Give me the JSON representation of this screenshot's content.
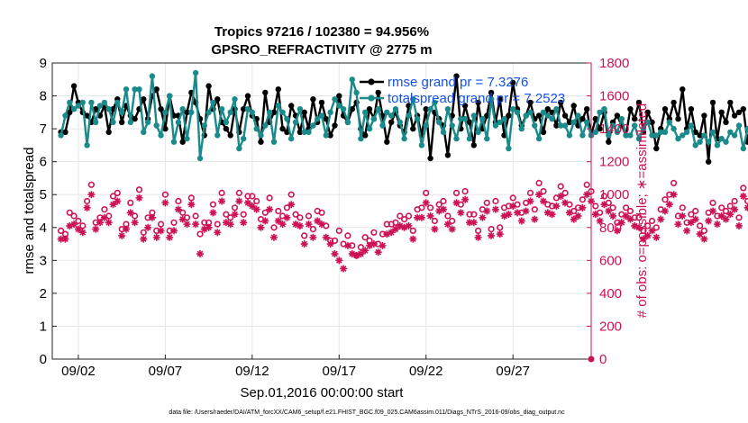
{
  "chart_data": {
    "type": "line",
    "title": "Tropics 97216 / 102380 = 94.956%",
    "subtitle": "GPSRO_REFRACTIVITY @ 2775 m",
    "xlabel": "Sep.01,2016 00:00:00 start",
    "ylabel_left": "rmse and totalspread",
    "ylabel_right": "# of obs: o=possible; ∗=assimilated",
    "footer": "data file: /Users/raeder/DAI/ATM_forcXX/CAM6_setup/f.e21.FHIST_BGC.f09_025.CAM6assim.011/Diags_NTrS_2016-09/obs_diag_output.nc",
    "xlim": [
      0.5,
      31.5
    ],
    "ylim_left": [
      0,
      9
    ],
    "ylim_right": [
      0,
      1800
    ],
    "x_ticks": [
      {
        "v": 2,
        "label": "09/02"
      },
      {
        "v": 7,
        "label": "09/07"
      },
      {
        "v": 12,
        "label": "09/12"
      },
      {
        "v": 17,
        "label": "09/17"
      },
      {
        "v": 22,
        "label": "09/22"
      },
      {
        "v": 27,
        "label": "09/27"
      }
    ],
    "y_ticks_left": [
      "0",
      "1",
      "2",
      "3",
      "4",
      "5",
      "6",
      "7",
      "8",
      "9"
    ],
    "y_ticks_right": [
      "0",
      "200",
      "400",
      "600",
      "800",
      "1000",
      "1200",
      "1400",
      "1600",
      "1800"
    ],
    "legend": [
      {
        "label": "rmse grand pr = 7.3276",
        "color": "#000000"
      },
      {
        "label": "totalspread grand pr = 7.2523",
        "color": "#1a8a8a"
      }
    ],
    "x_start": 1,
    "x_step": 0.25,
    "series": [
      {
        "name": "rmse",
        "color": "#000000",
        "axis": "left",
        "marker": "dot",
        "values": [
          6.9,
          6.9,
          7.5,
          8.3,
          7.8,
          7.5,
          7.4,
          7.2,
          7.6,
          7.4,
          7.7,
          6.9,
          7.6,
          7.9,
          7.2,
          7.7,
          7.4,
          7.3,
          7.6,
          7.9,
          7.3,
          8.0,
          8.2,
          7.6,
          7.0,
          8.0,
          7.4,
          7.4,
          6.6,
          7.5,
          8.1,
          7.8,
          7.3,
          6.8,
          8.3,
          7.6,
          7.9,
          7.2,
          7.0,
          6.8,
          7.6,
          6.9,
          7.6,
          8.0,
          7.4,
          7.3,
          6.6,
          8.1,
          7.2,
          7.5,
          8.2,
          7.0,
          6.9,
          7.7,
          7.4,
          6.9,
          7.5,
          7.0,
          7.9,
          7.2,
          7.8,
          7.3,
          6.8,
          7.1,
          8.0,
          7.4,
          7.2,
          7.6,
          7.8,
          7.0,
          6.8,
          7.6,
          7.3,
          8.1,
          7.4,
          6.6,
          7.2,
          7.5,
          7.1,
          6.9,
          7.7,
          7.0,
          7.4,
          6.8,
          7.6,
          6.1,
          7.5,
          7.3,
          7.1,
          6.2,
          7.4,
          8.6,
          7.0,
          7.7,
          7.2,
          6.5,
          7.8,
          7.0,
          7.4,
          8.1,
          7.2,
          7.9,
          6.8,
          7.4,
          8.4,
          7.6,
          7.1,
          7.4,
          7.8,
          7.3,
          7.4,
          6.9,
          7.6,
          7.5,
          7.1,
          7.8,
          7.4,
          7.2,
          7.7,
          7.1,
          7.3,
          7.6,
          6.8,
          7.3,
          7.0,
          7.5,
          6.6,
          7.2,
          7.4,
          7.1,
          6.8,
          7.6,
          7.3,
          7.8,
          6.9,
          7.5,
          7.2,
          6.4,
          7.0,
          7.6,
          7.3,
          7.8,
          7.3,
          8.2,
          7.0,
          7.6,
          6.9,
          6.8,
          7.4,
          6.0,
          7.8,
          6.7,
          7.5,
          7.2,
          7.8,
          7.4,
          7.5,
          7.6,
          6.6,
          7.3
        ]
      },
      {
        "name": "totalspread",
        "color": "#1a8a8a",
        "axis": "left",
        "marker": "dot",
        "values": [
          6.8,
          7.4,
          7.8,
          7.6,
          7.7,
          7.8,
          6.5,
          7.8,
          7.2,
          7.7,
          7.8,
          7.6,
          7.2,
          7.8,
          7.5,
          8.2,
          7.2,
          8.2,
          8.2,
          6.9,
          7.2,
          8.6,
          7.1,
          6.8,
          7.5,
          8.0,
          6.6,
          7.2,
          7.6,
          6.7,
          7.5,
          8.7,
          6.1,
          7.1,
          7.5,
          7.8,
          6.8,
          7.6,
          7.2,
          7.5,
          7.9,
          6.4,
          6.7,
          7.6,
          7.5,
          7.0,
          6.8,
          7.1,
          7.5,
          6.6,
          7.7,
          7.5,
          7.3,
          6.7,
          7.2,
          7.6,
          6.9,
          6.9,
          7.1,
          7.3,
          7.4,
          6.8,
          7.5,
          7.9,
          7.7,
          7.6,
          7.2,
          8.5,
          8.1,
          6.7,
          7.5,
          7.0,
          7.3,
          7.6,
          7.1,
          7.5,
          7.4,
          7.6,
          7.2,
          6.7,
          7.4,
          7.9,
          7.3,
          6.5,
          7.1,
          7.6,
          7.8,
          7.2,
          6.9,
          7.6,
          7.1,
          6.7,
          7.3,
          7.3,
          6.7,
          7.4,
          6.9,
          7.3,
          6.7,
          7.9,
          7.1,
          7.2,
          7.3,
          6.4,
          7.6,
          7.5,
          7.0,
          7.4,
          7.5,
          7.1,
          6.7,
          7.5,
          7.4,
          7.3,
          7.6,
          7.1,
          7.1,
          6.8,
          7.2,
          7.4,
          6.8,
          7.2,
          6.8,
          6.9,
          7.5,
          7.6,
          6.8,
          7.1,
          6.9,
          7.3,
          6.8,
          6.8,
          7.1,
          6.7,
          7.0,
          7.2,
          6.8,
          6.8,
          6.9,
          6.9,
          7.2,
          7.0,
          6.7,
          6.8,
          6.9,
          7.1,
          6.5,
          6.6,
          6.8,
          6.6,
          6.9,
          6.5,
          6.7,
          6.6,
          6.9,
          6.8,
          7.1,
          6.4,
          7.0,
          7.2
        ]
      },
      {
        "name": "obs possible",
        "color": "#cc1155",
        "axis": "right",
        "marker": "circle",
        "values": [
          780,
          760,
          890,
          870,
          840,
          810,
          960,
          1060,
          830,
          860,
          910,
          870,
          990,
          1010,
          790,
          820,
          950,
          870,
          1030,
          770,
          860,
          890,
          780,
          820,
          1000,
          780,
          830,
          960,
          890,
          860,
          980,
          870,
          760,
          830,
          830,
          940,
          820,
          1010,
          880,
          860,
          920,
          1010,
          880,
          990,
          990,
          960,
          850,
          890,
          980,
          800,
          900,
          870,
          920,
          1000,
          880,
          860,
          750,
          870,
          790,
          900,
          890,
          810,
          720,
          720,
          780,
          700,
          750,
          690,
          630,
          680,
          740,
          720,
          770,
          700,
          760,
          820,
          820,
          830,
          870,
          850,
          870,
          780,
          910,
          920,
          1010,
          920,
          840,
          940,
          960,
          870,
          840,
          1010,
          940,
          1020,
          880,
          880,
          780,
          910,
          950,
          790,
          960,
          800,
          920,
          930,
          980,
          940,
          890,
          950,
          1010,
          910,
          1070,
          1020,
          940,
          930,
          980,
          1050,
          1010,
          940,
          900,
          920,
          970,
          1060,
          1020,
          930,
          890,
          990,
          950,
          920,
          830,
          880,
          920,
          900,
          860,
          860,
          780,
          810,
          840,
          800,
          910,
          970,
          1000,
          1070,
          870,
          920,
          830,
          880,
          900,
          810,
          780,
          890,
          950,
          870,
          920,
          900,
          930,
          960,
          860,
          1040,
          960
        ]
      },
      {
        "name": "obs assimilated",
        "color": "#cc1155",
        "axis": "right",
        "marker": "star",
        "values": [
          730,
          730,
          810,
          820,
          790,
          770,
          920,
          1000,
          790,
          830,
          860,
          830,
          940,
          960,
          750,
          790,
          890,
          830,
          980,
          730,
          800,
          860,
          740,
          780,
          950,
          740,
          780,
          910,
          850,
          820,
          940,
          820,
          640,
          790,
          800,
          890,
          770,
          960,
          830,
          820,
          880,
          960,
          830,
          950,
          930,
          910,
          800,
          840,
          910,
          740,
          840,
          820,
          860,
          940,
          820,
          810,
          700,
          820,
          740,
          840,
          820,
          740,
          700,
          640,
          600,
          550,
          690,
          640,
          630,
          640,
          660,
          690,
          700,
          650,
          690,
          760,
          770,
          790,
          810,
          800,
          810,
          730,
          860,
          860,
          950,
          870,
          790,
          900,
          910,
          820,
          790,
          950,
          890,
          970,
          830,
          830,
          740,
          860,
          900,
          750,
          910,
          760,
          870,
          880,
          930,
          890,
          840,
          900,
          960,
          850,
          1000,
          960,
          890,
          880,
          930,
          990,
          950,
          890,
          850,
          870,
          920,
          1000,
          960,
          880,
          840,
          940,
          900,
          870,
          780,
          830,
          870,
          850,
          810,
          800,
          730,
          750,
          780,
          740,
          850,
          900,
          940,
          1000,
          820,
          870,
          780,
          830,
          850,
          760,
          730,
          840,
          900,
          820,
          870,
          850,
          880,
          910,
          810,
          990,
          920
        ]
      }
    ]
  }
}
